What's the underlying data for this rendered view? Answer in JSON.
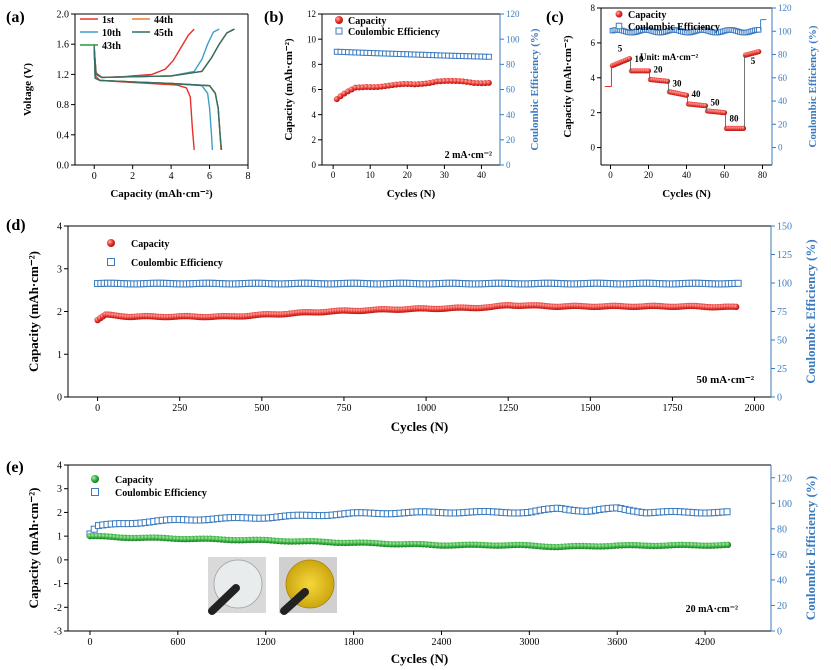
{
  "chart_data": [
    {
      "panel": "(a)",
      "type": "line",
      "xlabel": "Capacity (mAh·cm⁻²)",
      "ylabel": "Voltage (V)",
      "xlim": [
        -1,
        8
      ],
      "ylim": [
        0,
        2.0
      ],
      "xticks": [
        "0",
        "2",
        "4",
        "6",
        "8"
      ],
      "yticks": [
        "0.0",
        "0.4",
        "0.8",
        "1.2",
        "1.6",
        "2.0"
      ],
      "legend": [
        {
          "name": "1st",
          "color": "#e8302a"
        },
        {
          "name": "44th",
          "color": "#f07d2e"
        },
        {
          "name": "10th",
          "color": "#3aa0c7"
        },
        {
          "name": "45th",
          "color": "#2f6f66"
        },
        {
          "name": "43th",
          "color": "#2e9a3c"
        }
      ],
      "series": [
        {
          "name": "1st",
          "color": "#e8302a",
          "discharge": {
            "x": [
              0,
              0.05,
              0.3,
              1.5,
              3,
              4.3,
              4.8,
              5.0,
              5.1,
              5.2
            ],
            "y": [
              1.6,
              1.18,
              1.12,
              1.1,
              1.08,
              1.06,
              1.02,
              0.9,
              0.5,
              0.2
            ]
          },
          "charge": {
            "x": [
              0,
              0.1,
              0.4,
              1.5,
              3,
              3.7,
              4.1,
              4.5,
              4.9,
              5.2
            ],
            "y": [
              1.55,
              1.22,
              1.16,
              1.17,
              1.2,
              1.27,
              1.38,
              1.55,
              1.72,
              1.8
            ]
          }
        },
        {
          "name": "10th",
          "color": "#3aa0c7",
          "discharge": {
            "x": [
              0,
              0.05,
              0.3,
              2,
              4,
              5.6,
              5.9,
              6.0,
              6.1,
              6.15
            ],
            "y": [
              1.58,
              1.16,
              1.12,
              1.1,
              1.08,
              1.05,
              0.95,
              0.75,
              0.4,
              0.2
            ]
          },
          "charge": {
            "x": [
              0,
              0.1,
              0.4,
              2,
              4,
              5.2,
              5.6,
              5.9,
              6.2,
              6.5
            ],
            "y": [
              1.52,
              1.2,
              1.16,
              1.17,
              1.18,
              1.24,
              1.4,
              1.6,
              1.76,
              1.8
            ]
          }
        },
        {
          "name": "43th",
          "color": "#2e9a3c",
          "discharge": {
            "x": [
              0,
              0.05,
              0.3,
              2,
              4,
              6.0,
              6.3,
              6.45,
              6.55,
              6.6
            ],
            "y": [
              1.58,
              1.15,
              1.12,
              1.1,
              1.08,
              1.05,
              0.95,
              0.75,
              0.4,
              0.2
            ]
          },
          "charge": {
            "x": [
              0,
              0.1,
              0.4,
              2,
              4,
              5.6,
              6.1,
              6.5,
              6.9,
              7.3
            ],
            "y": [
              1.52,
              1.2,
              1.16,
              1.17,
              1.18,
              1.24,
              1.42,
              1.6,
              1.75,
              1.8
            ]
          }
        },
        {
          "name": "44th",
          "color": "#f07d2e",
          "discharge": {
            "x": [
              0,
              0.05,
              0.3,
              2,
              4,
              6.0,
              6.3,
              6.45,
              6.55,
              6.6
            ],
            "y": [
              1.58,
              1.15,
              1.12,
              1.1,
              1.08,
              1.05,
              0.95,
              0.75,
              0.4,
              0.2
            ]
          },
          "charge": {
            "x": [
              0,
              0.1,
              0.4,
              2,
              4,
              5.6,
              6.1,
              6.5,
              6.9,
              7.25
            ],
            "y": [
              1.52,
              1.2,
              1.16,
              1.17,
              1.18,
              1.24,
              1.42,
              1.6,
              1.75,
              1.8
            ]
          }
        },
        {
          "name": "45th",
          "color": "#2f6f66",
          "discharge": {
            "x": [
              0,
              0.05,
              0.3,
              2,
              4,
              6.0,
              6.3,
              6.45,
              6.55,
              6.62
            ],
            "y": [
              1.58,
              1.15,
              1.12,
              1.1,
              1.08,
              1.05,
              0.95,
              0.75,
              0.4,
              0.2
            ]
          },
          "charge": {
            "x": [
              0,
              0.1,
              0.4,
              2,
              4,
              5.6,
              6.1,
              6.5,
              6.9,
              7.3
            ],
            "y": [
              1.52,
              1.2,
              1.16,
              1.17,
              1.18,
              1.24,
              1.42,
              1.6,
              1.75,
              1.8
            ]
          }
        }
      ]
    },
    {
      "panel": "(b)",
      "type": "scatter",
      "xlabel": "Cycles (N)",
      "ylabel": "Capacity (mAh·cm⁻²)",
      "y2label": "Coulombic Efficiency (%)",
      "xlim": [
        -3,
        45
      ],
      "ylim": [
        0,
        12
      ],
      "y2lim": [
        0,
        120
      ],
      "xticks": [
        "0",
        "10",
        "20",
        "30",
        "40"
      ],
      "yticks": [
        "0",
        "2",
        "4",
        "6",
        "8",
        "10",
        "12"
      ],
      "y2ticks": [
        "0",
        "20",
        "40",
        "60",
        "80",
        "100",
        "120"
      ],
      "legend": [
        "Capacity",
        "Coulombic Efficiency"
      ],
      "annotation": "2 mA·cm⁻²",
      "capacity": {
        "x_start": 1,
        "x_end": 42,
        "keypoints_x": [
          1,
          3,
          6,
          9,
          15,
          22,
          28,
          33,
          38,
          42
        ],
        "keypoints_y": [
          5.2,
          5.6,
          6.1,
          6.25,
          6.3,
          6.4,
          6.7,
          6.6,
          6.55,
          6.6
        ]
      },
      "efficiency": {
        "x_start": 1,
        "x_end": 42,
        "keypoints_x": [
          1,
          10,
          20,
          30,
          42
        ],
        "keypoints_y": [
          90,
          89,
          88,
          87,
          86
        ]
      }
    },
    {
      "panel": "(c)",
      "type": "scatter",
      "xlabel": "Cycles (N)",
      "ylabel": "Capacity (mAh·cm⁻²)",
      "y2label": "Coulombic Efficiency (%)",
      "xlim": [
        -5,
        85
      ],
      "ylim": [
        -1,
        8
      ],
      "y2lim": [
        -15,
        120
      ],
      "xticks": [
        "0",
        "20",
        "40",
        "60",
        "80"
      ],
      "yticks": [
        "0",
        "2",
        "4",
        "6",
        "8"
      ],
      "y2ticks": [
        "0",
        "20",
        "40",
        "60",
        "80",
        "100",
        "120"
      ],
      "legend": [
        "Capacity",
        "Coulombic Efficiency"
      ],
      "annotation": "Unit: mA·cm⁻²",
      "rate_labels": [
        {
          "text": "5",
          "x": 5,
          "y": 5.5
        },
        {
          "text": "10",
          "x": 15,
          "y": 4.9
        },
        {
          "text": "20",
          "x": 25,
          "y": 4.3
        },
        {
          "text": "30",
          "x": 35,
          "y": 3.5
        },
        {
          "text": "40",
          "x": 45,
          "y": 2.9
        },
        {
          "text": "50",
          "x": 55,
          "y": 2.4
        },
        {
          "text": "80",
          "x": 65,
          "y": 1.5
        },
        {
          "text": "5",
          "x": 75,
          "y": 4.8
        }
      ],
      "capacity_segments": [
        {
          "x0": 1,
          "x1": 10,
          "y0": 4.7,
          "y1": 5.1
        },
        {
          "x0": 11,
          "x1": 20,
          "y0": 4.4,
          "y1": 4.4
        },
        {
          "x0": 21,
          "x1": 30,
          "y0": 3.9,
          "y1": 3.8
        },
        {
          "x0": 31,
          "x1": 40,
          "y0": 3.2,
          "y1": 3.0
        },
        {
          "x0": 41,
          "x1": 50,
          "y0": 2.5,
          "y1": 2.4
        },
        {
          "x0": 51,
          "x1": 60,
          "y0": 2.1,
          "y1": 2.0
        },
        {
          "x0": 61,
          "x1": 70,
          "y0": 1.1,
          "y1": 1.1
        },
        {
          "x0": 71,
          "x1": 78,
          "y0": 5.3,
          "y1": 5.5
        }
      ],
      "efficiency": {
        "x_start": 1,
        "x_end": 78,
        "value": 100
      }
    },
    {
      "panel": "(d)",
      "type": "scatter",
      "xlabel": "Cycles (N)",
      "ylabel": "Capacity (mAh·cm⁻²)",
      "y2label": "Coulombic Efficiency (%)",
      "xlim": [
        -90,
        2050
      ],
      "ylim": [
        0,
        4
      ],
      "y2lim": [
        0,
        150
      ],
      "xticks": [
        "0",
        "250",
        "500",
        "750",
        "1000",
        "1250",
        "1500",
        "1750",
        "2000"
      ],
      "yticks": [
        "0",
        "1",
        "2",
        "3",
        "4"
      ],
      "y2ticks": [
        "0",
        "25",
        "50",
        "75",
        "100",
        "125",
        "150"
      ],
      "legend": [
        "Capacity",
        "Coulombic Efficiency"
      ],
      "annotation": "50 mA·cm⁻²",
      "capacity": {
        "x_start": 0,
        "x_end": 1940,
        "keypoints_x": [
          0,
          25,
          100,
          250,
          400,
          500,
          700,
          900,
          1100,
          1200,
          1250,
          1400,
          1600,
          1800,
          1940
        ],
        "keypoints_y": [
          1.8,
          1.92,
          1.88,
          1.88,
          1.88,
          1.92,
          2.0,
          2.05,
          2.08,
          2.1,
          2.15,
          2.12,
          2.12,
          2.12,
          2.1
        ]
      },
      "efficiency": {
        "x_start": 0,
        "x_end": 1940,
        "value": 99.5
      }
    },
    {
      "panel": "(e)",
      "type": "scatter",
      "xlabel": "Cycles (N)",
      "ylabel": "Capacity (mAh·cm⁻²)",
      "y2label": "Coulombic Efficiency (%)",
      "xlim": [
        -150,
        4650
      ],
      "ylim": [
        -3,
        4
      ],
      "y2lim": [
        0,
        130
      ],
      "xticks": [
        "0",
        "600",
        "1200",
        "1800",
        "2400",
        "3000",
        "3600",
        "4200"
      ],
      "yticks": [
        "-3",
        "-2",
        "-1",
        "0",
        "1",
        "2",
        "3",
        "4"
      ],
      "y2ticks": [
        "0",
        "20",
        "40",
        "60",
        "80",
        "100",
        "120"
      ],
      "legend": [
        "Capacity",
        "Coulombic Efficiency"
      ],
      "annotation": "20 mA·cm⁻²",
      "capacity": {
        "x_start": 0,
        "x_end": 4350,
        "keypoints_x": [
          0,
          200,
          600,
          1200,
          1800,
          2400,
          2900,
          3200,
          3600,
          4350
        ],
        "keypoints_y": [
          1.0,
          0.95,
          0.9,
          0.82,
          0.72,
          0.62,
          0.62,
          0.55,
          0.6,
          0.62
        ]
      },
      "efficiency": {
        "x_start": 0,
        "x_end": 4350,
        "keypoints_x": [
          0,
          50,
          200,
          600,
          1200,
          1800,
          2400,
          3000,
          3200,
          3400,
          3600,
          3800,
          4350
        ],
        "keypoints_y": [
          76,
          82,
          84,
          87,
          89,
          92,
          93,
          93,
          96,
          94,
          96,
          93,
          93
        ]
      }
    }
  ]
}
